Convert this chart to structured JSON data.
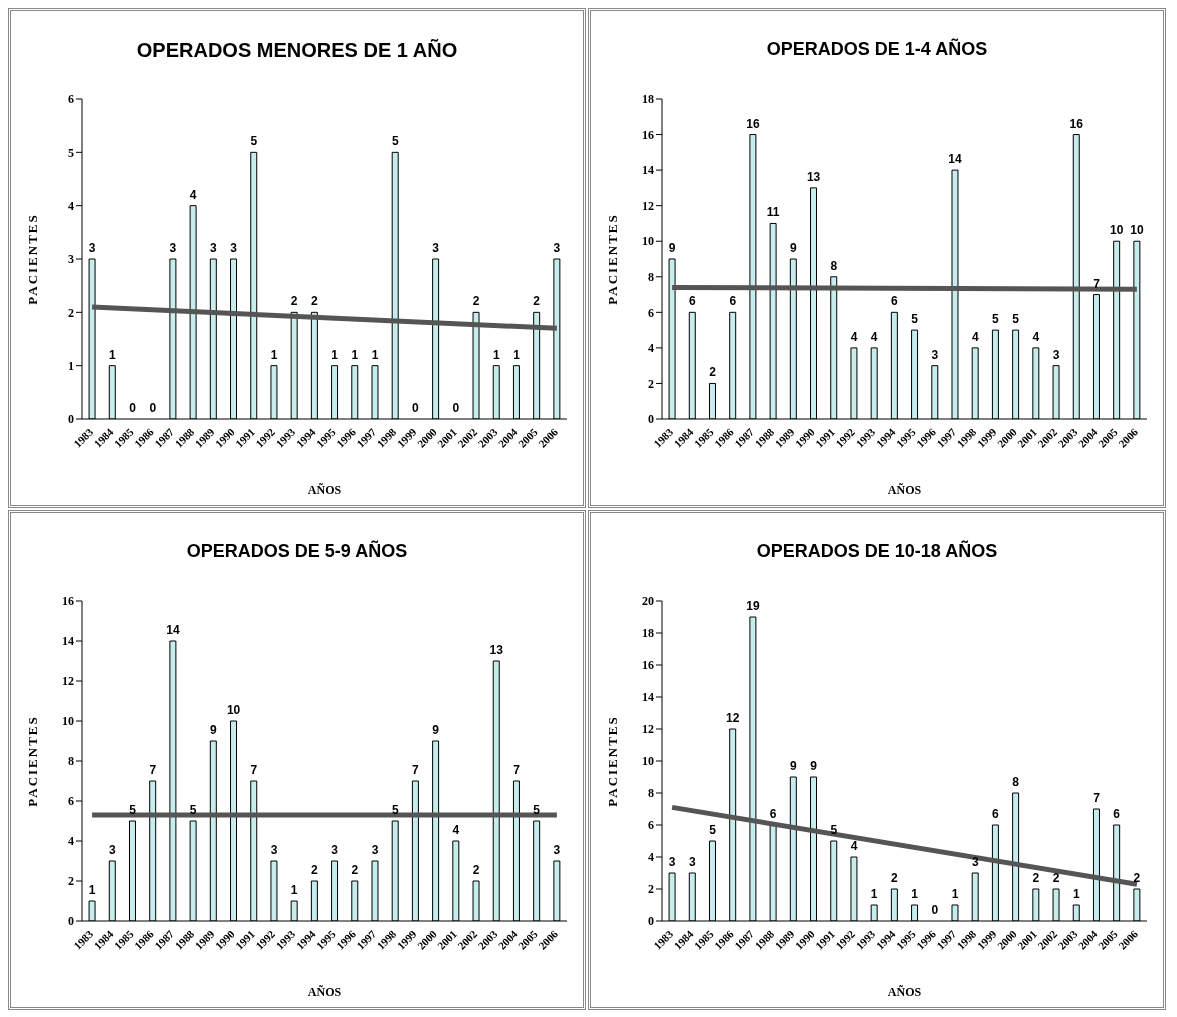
{
  "chart_data": [
    {
      "type": "bar",
      "title": "OPERADOS MENORES DE 1 AÑO",
      "xlabel": "AÑOS",
      "ylabel": "PACIENTES",
      "categories": [
        "1983",
        "1984",
        "1985",
        "1986",
        "1987",
        "1988",
        "1989",
        "1990",
        "1991",
        "1992",
        "1993",
        "1994",
        "1995",
        "1996",
        "1997",
        "1998",
        "1999",
        "2000",
        "2001",
        "2002",
        "2003",
        "2004",
        "2005",
        "2006"
      ],
      "series": [
        {
          "color": "#c6ecec",
          "values": [
            3,
            1,
            0,
            0,
            3,
            4,
            3,
            3,
            5,
            1,
            2,
            2,
            1,
            1,
            1,
            5,
            0,
            3,
            0,
            2,
            1,
            1,
            2,
            3
          ],
          "value_labels": [
            "3",
            "1",
            "0",
            "0",
            "3",
            "4",
            "3",
            "3",
            "5",
            "1",
            "2",
            "2",
            "1",
            "1",
            "1",
            "5",
            "0",
            "3",
            "0",
            "2",
            "1",
            "1",
            "2",
            "3"
          ]
        },
        {
          "type": "line",
          "color": "#555555",
          "values": [
            2.1,
            null,
            null,
            null,
            null,
            null,
            null,
            null,
            null,
            null,
            null,
            null,
            null,
            null,
            null,
            null,
            null,
            null,
            null,
            null,
            null,
            null,
            null,
            1.7
          ]
        }
      ],
      "ylim": [
        0,
        6
      ],
      "yticks": [
        0,
        1,
        2,
        3,
        4,
        5,
        6
      ],
      "grid": false,
      "legend": false
    },
    {
      "type": "bar",
      "title": "OPERADOS DE 1-4 AÑOS",
      "xlabel": "AÑOS",
      "ylabel": "PACIENTES",
      "categories": [
        "1983",
        "1984",
        "1985",
        "1986",
        "1987",
        "1988",
        "1989",
        "1990",
        "1991",
        "1992",
        "1993",
        "1994",
        "1995",
        "1996",
        "1997",
        "1998",
        "1999",
        "2000",
        "2001",
        "2002",
        "2003",
        "2004",
        "2005",
        "2006"
      ],
      "series": [
        {
          "color": "#c6ecec",
          "values": [
            9,
            6,
            2,
            6,
            16,
            11,
            9,
            13,
            8,
            4,
            4,
            6,
            5,
            3,
            14,
            4,
            5,
            5,
            4,
            3,
            16,
            7,
            10,
            10
          ],
          "value_labels": [
            "9",
            "6",
            "2",
            "6",
            "16",
            "11",
            "9",
            "13",
            "8",
            "4",
            "4",
            "6",
            "5",
            "3",
            "14",
            "4",
            "5",
            "5",
            "4",
            "3",
            "16",
            "7",
            "10",
            "10"
          ]
        },
        {
          "type": "line",
          "color": "#555555",
          "values": [
            7.4,
            null,
            null,
            null,
            null,
            null,
            null,
            null,
            null,
            null,
            null,
            null,
            null,
            null,
            null,
            null,
            null,
            null,
            null,
            null,
            null,
            null,
            null,
            7.3
          ]
        }
      ],
      "ylim": [
        0,
        18
      ],
      "yticks": [
        0,
        2,
        4,
        6,
        8,
        10,
        12,
        14,
        16,
        18
      ],
      "grid": false,
      "legend": false
    },
    {
      "type": "bar",
      "title": "OPERADOS DE 5-9 AÑOS",
      "xlabel": "AÑOS",
      "ylabel": "PACIENTES",
      "categories": [
        "1983",
        "1984",
        "1985",
        "1986",
        "1987",
        "1988",
        "1989",
        "1990",
        "1991",
        "1992",
        "1993",
        "1994",
        "1995",
        "1996",
        "1997",
        "1998",
        "1999",
        "2000",
        "2001",
        "2002",
        "2003",
        "2004",
        "2005",
        "2006"
      ],
      "series": [
        {
          "color": "#c6ecec",
          "values": [
            1,
            3,
            5,
            7,
            14,
            5,
            9,
            10,
            7,
            3,
            1,
            2,
            3,
            2,
            3,
            5,
            7,
            9,
            4,
            2,
            13,
            7,
            5,
            3
          ],
          "value_labels": [
            "1",
            "3",
            "5",
            "7",
            "14",
            "5",
            "9",
            "10",
            "7",
            "3",
            "1",
            "2",
            "3",
            "2",
            "3",
            "5",
            "7",
            "9",
            "4",
            "2",
            "13",
            "7",
            "5",
            "3"
          ]
        },
        {
          "type": "line",
          "color": "#555555",
          "values": [
            5.3,
            null,
            null,
            null,
            null,
            null,
            null,
            null,
            null,
            null,
            null,
            null,
            null,
            null,
            null,
            null,
            null,
            null,
            null,
            null,
            null,
            null,
            null,
            5.3
          ]
        }
      ],
      "ylim": [
        0,
        16
      ],
      "yticks": [
        0,
        2,
        4,
        6,
        8,
        10,
        12,
        14,
        16
      ],
      "grid": false,
      "legend": false
    },
    {
      "type": "bar",
      "title": "OPERADOS DE 10-18 AÑOS",
      "xlabel": "AÑOS",
      "ylabel": "PACIENTES",
      "categories": [
        "1983",
        "1984",
        "1985",
        "1986",
        "1987",
        "1988",
        "1989",
        "1990",
        "1991",
        "1992",
        "1993",
        "1994",
        "1995",
        "1996",
        "1997",
        "1998",
        "1999",
        "2000",
        "2001",
        "2002",
        "2003",
        "2004",
        "2005",
        "2006"
      ],
      "series": [
        {
          "color": "#c6ecec",
          "values": [
            3,
            3,
            5,
            12,
            19,
            6,
            9,
            9,
            5,
            4,
            1,
            2,
            1,
            0,
            1,
            3,
            6,
            8,
            2,
            2,
            1,
            7,
            6,
            2
          ],
          "value_labels": [
            "3",
            "3",
            "5",
            "12",
            "19",
            "6",
            "9",
            "9",
            "5",
            "4",
            "1",
            "2",
            "1",
            "0",
            "1",
            "3",
            "6",
            "8",
            "2",
            "2",
            "1",
            "7",
            "6",
            "2"
          ]
        },
        {
          "type": "line",
          "color": "#555555",
          "values": [
            7.1,
            null,
            null,
            null,
            null,
            null,
            null,
            null,
            null,
            null,
            null,
            null,
            null,
            null,
            null,
            null,
            null,
            null,
            null,
            null,
            null,
            null,
            null,
            2.3
          ]
        }
      ],
      "ylim": [
        0,
        20
      ],
      "yticks": [
        0,
        2,
        4,
        6,
        8,
        10,
        12,
        14,
        16,
        18,
        20
      ],
      "grid": false,
      "legend": false
    }
  ]
}
